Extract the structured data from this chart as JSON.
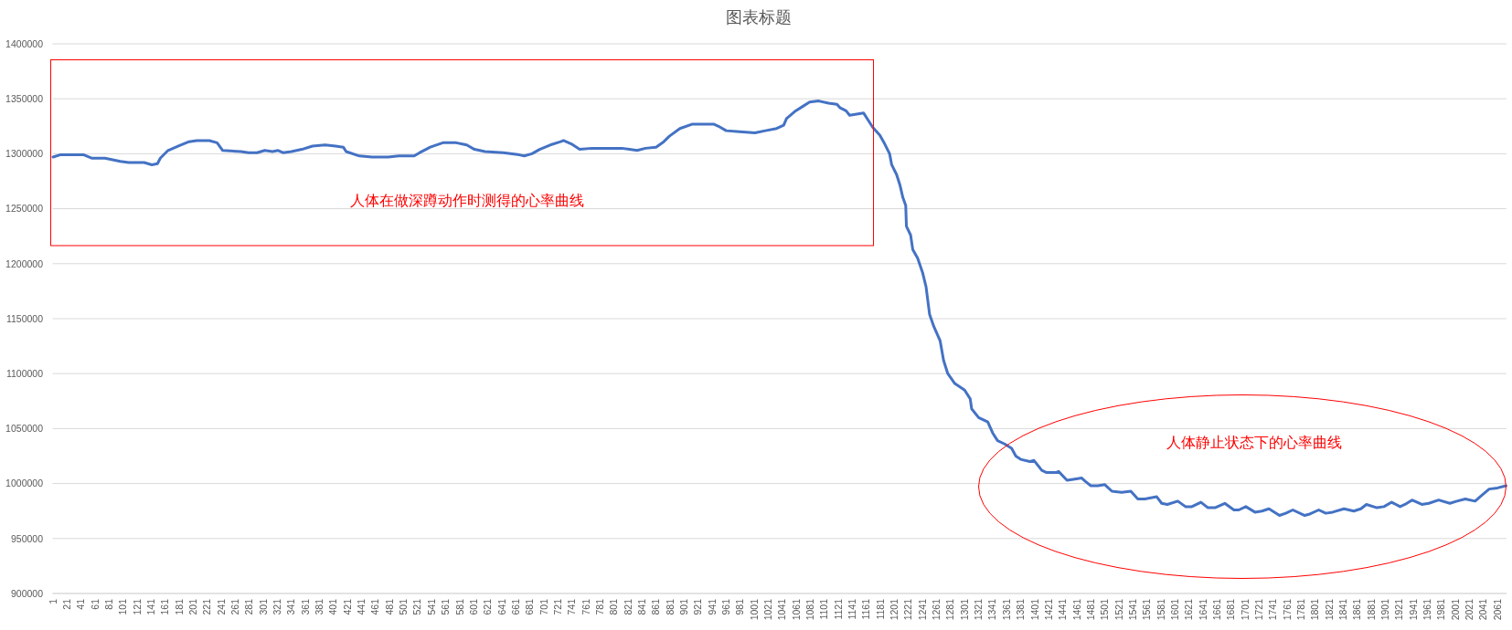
{
  "chart_data": {
    "type": "line",
    "title": "图表标题",
    "annotations": [
      "人体在做深蹲动作时测得的心率曲线",
      "人体静止状态下的心率曲线"
    ],
    "x": [
      1,
      11,
      19,
      45,
      56,
      75,
      97,
      109,
      131,
      142,
      150,
      154,
      165,
      180,
      195,
      206,
      224,
      235,
      243,
      269,
      280,
      292,
      303,
      314,
      322,
      329,
      341,
      356,
      371,
      389,
      404,
      415,
      419,
      438,
      456,
      479,
      494,
      516,
      524,
      539,
      557,
      576,
      591,
      602,
      617,
      643,
      666,
      673,
      684,
      695,
      710,
      725,
      729,
      740,
      752,
      770,
      812,
      823,
      834,
      846,
      861,
      872,
      880,
      895,
      913,
      943,
      950,
      961,
      980,
      1002,
      1017,
      1033,
      1043,
      1047,
      1060,
      1070,
      1080,
      1093,
      1107,
      1119,
      1123,
      1132,
      1137,
      1147,
      1157,
      1164,
      1170,
      1180,
      1187,
      1194,
      1197,
      1204,
      1209,
      1213,
      1217,
      1218,
      1224,
      1227,
      1234,
      1241,
      1246,
      1251,
      1257,
      1266,
      1271,
      1277,
      1287,
      1301,
      1309,
      1311,
      1321,
      1334,
      1341,
      1348,
      1358,
      1368,
      1374,
      1381,
      1394,
      1400,
      1411,
      1418,
      1431,
      1435,
      1447,
      1458,
      1468,
      1473,
      1481,
      1491,
      1501,
      1511,
      1525,
      1538,
      1548,
      1558,
      1575,
      1582,
      1590,
      1605,
      1616,
      1625,
      1638,
      1648,
      1658,
      1672,
      1685,
      1692,
      1702,
      1715,
      1725,
      1735,
      1750,
      1759,
      1769,
      1786,
      1792,
      1806,
      1816,
      1826,
      1842,
      1856,
      1866,
      1874,
      1889,
      1899,
      1910,
      1922,
      1929,
      1939,
      1953,
      1963,
      1977,
      1993,
      2003,
      2015,
      2029,
      2036,
      2049,
      2061,
      2073
    ],
    "series": [
      {
        "color": "#4472c4",
        "values": [
          1297000,
          1299000,
          1299000,
          1299000,
          1296000,
          1296000,
          1293000,
          1292000,
          1292000,
          1290000,
          1291000,
          1296000,
          1303000,
          1307000,
          1311000,
          1312000,
          1312000,
          1310000,
          1303000,
          1302000,
          1301000,
          1301000,
          1303000,
          1302000,
          1303000,
          1301000,
          1302000,
          1304000,
          1307000,
          1308000,
          1307000,
          1306000,
          1302000,
          1298000,
          1297000,
          1297000,
          1298000,
          1298000,
          1301000,
          1306000,
          1310000,
          1310000,
          1308000,
          1304000,
          1302000,
          1301000,
          1299000,
          1298000,
          1300000,
          1304000,
          1308000,
          1311000,
          1312000,
          1309000,
          1304000,
          1305000,
          1305000,
          1304000,
          1303000,
          1305000,
          1306000,
          1311000,
          1316000,
          1323000,
          1327000,
          1327000,
          1325000,
          1321000,
          1320000,
          1319000,
          1321000,
          1323000,
          1326000,
          1332000,
          1339000,
          1343000,
          1347000,
          1348000,
          1346000,
          1345000,
          1342000,
          1339000,
          1335000,
          1336000,
          1337000,
          1330000,
          1324000,
          1317000,
          1309000,
          1300000,
          1290000,
          1281000,
          1271000,
          1260000,
          1253000,
          1234000,
          1226000,
          1213000,
          1205000,
          1192000,
          1179000,
          1154000,
          1143000,
          1130000,
          1112000,
          1100000,
          1091000,
          1085000,
          1077000,
          1068000,
          1060000,
          1056000,
          1046000,
          1039000,
          1036000,
          1032000,
          1025000,
          1022000,
          1020000,
          1021000,
          1012000,
          1010000,
          1010000,
          1011000,
          1003000,
          1004000,
          1005000,
          1002000,
          998000,
          998000,
          999000,
          993000,
          992000,
          993000,
          986000,
          986000,
          988000,
          982000,
          981000,
          984000,
          979000,
          979000,
          983000,
          978000,
          978000,
          982000,
          976000,
          976000,
          979000,
          974000,
          975000,
          977000,
          971000,
          973000,
          976000,
          971000,
          972000,
          976000,
          973000,
          974000,
          977000,
          975000,
          977000,
          981000,
          978000,
          979000,
          983000,
          979000,
          981000,
          985000,
          981000,
          982000,
          985000,
          982000,
          984000,
          986000,
          984000,
          988000,
          995000,
          996000,
          998000
        ]
      }
    ],
    "xlim": [
      0.5,
      2073.5
    ],
    "xticks": [
      1,
      21,
      41,
      61,
      81,
      101,
      121,
      141,
      161,
      181,
      201,
      221,
      241,
      261,
      281,
      301,
      321,
      341,
      361,
      381,
      401,
      421,
      441,
      461,
      481,
      501,
      521,
      541,
      561,
      581,
      601,
      621,
      641,
      661,
      681,
      701,
      721,
      741,
      761,
      781,
      801,
      821,
      841,
      861,
      881,
      901,
      921,
      941,
      961,
      981,
      1001,
      1021,
      1041,
      1061,
      1081,
      1101,
      1121,
      1141,
      1161,
      1181,
      1201,
      1221,
      1241,
      1261,
      1281,
      1301,
      1321,
      1341,
      1361,
      1381,
      1401,
      1421,
      1441,
      1461,
      1481,
      1501,
      1521,
      1541,
      1561,
      1581,
      1601,
      1621,
      1641,
      1661,
      1681,
      1701,
      1721,
      1741,
      1761,
      1781,
      1801,
      1821,
      1841,
      1861,
      1881,
      1901,
      1921,
      1941,
      1961,
      1981,
      2001,
      2021,
      2041,
      2061
    ],
    "ylim": [
      900000,
      1400000
    ],
    "yticks": [
      900000,
      950000,
      1000000,
      1050000,
      1100000,
      1150000,
      1200000,
      1250000,
      1300000,
      1350000,
      1400000
    ],
    "grid": "y"
  }
}
